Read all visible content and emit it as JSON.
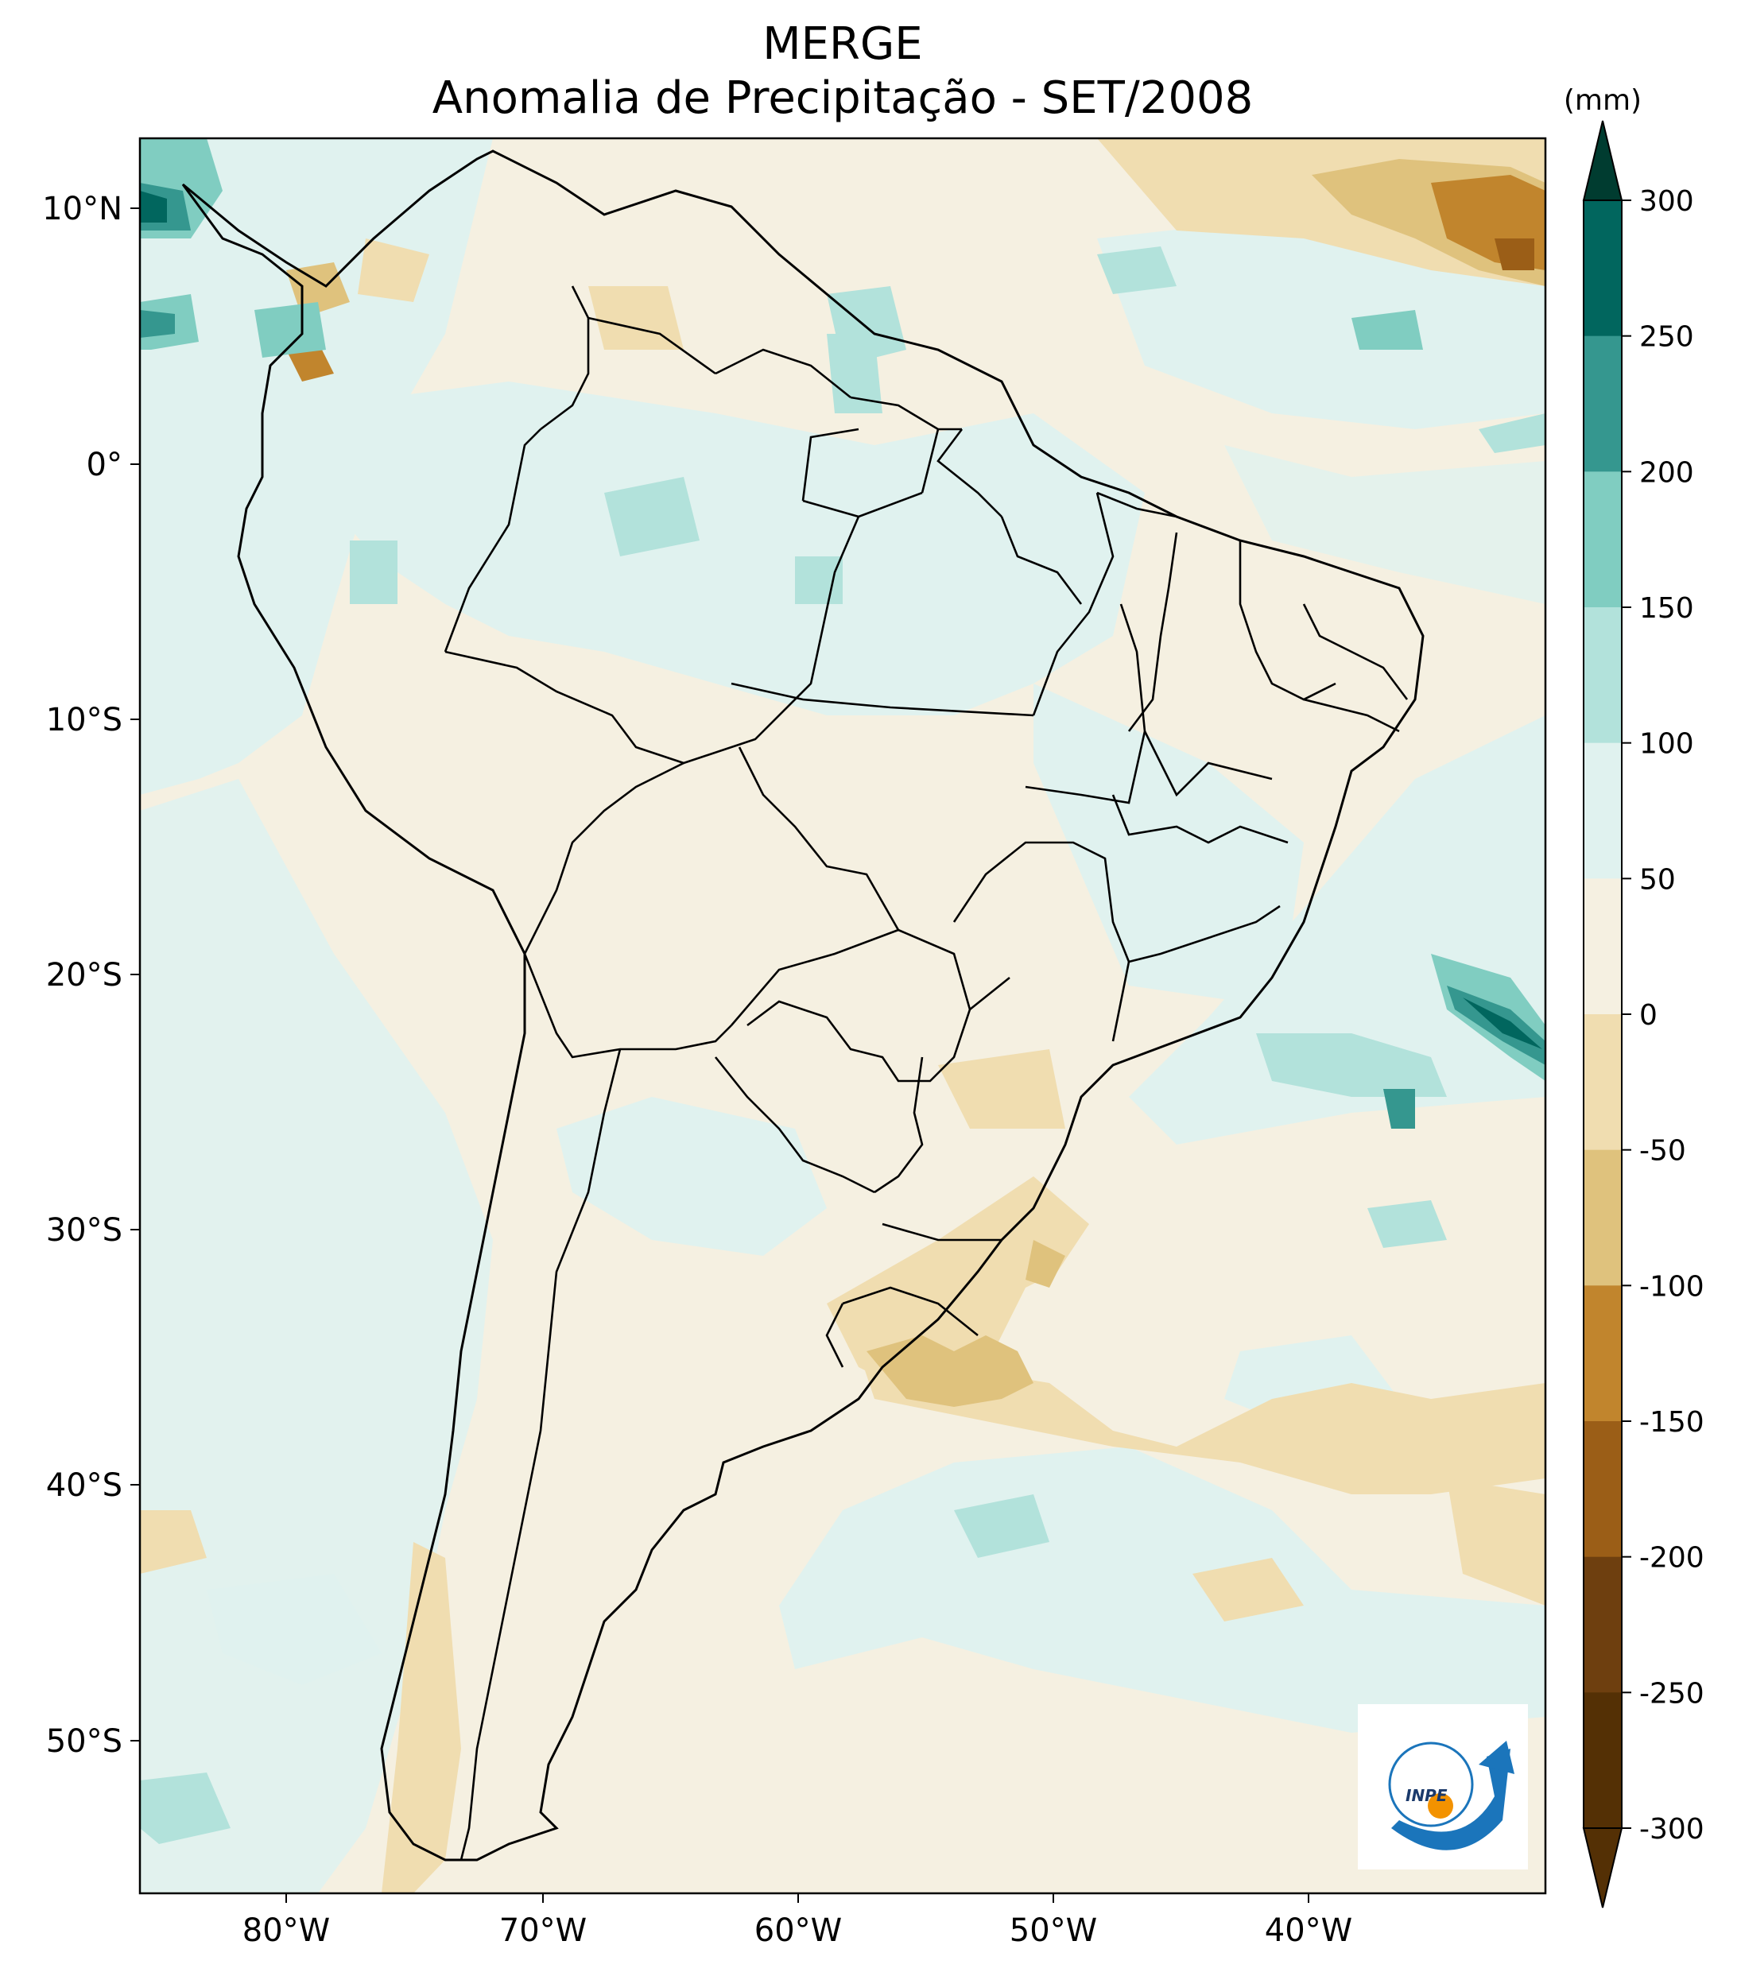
{
  "title": "MERGE",
  "subtitle": "Anomalia de Precipitação - SET/2008",
  "colorbar": {
    "unit": "(mm)",
    "ticks": [
      "300",
      "250",
      "200",
      "150",
      "100",
      "50",
      "0",
      "-50",
      "-100",
      "-150",
      "-200",
      "-250",
      "-300"
    ],
    "colors": [
      "#003c30",
      "#01665e",
      "#35978f",
      "#80cdc1",
      "#b2e2db",
      "#e0f2ef",
      "#f5f0e1",
      "#f0ddb0",
      "#dfc27d",
      "#c1852d",
      "#9b5e17",
      "#6e3f0f",
      "#543005"
    ]
  },
  "axes": {
    "lat_labels": [
      "10°N",
      "0°",
      "10°S",
      "20°S",
      "30°S",
      "40°S",
      "50°S"
    ],
    "lon_labels": [
      "80°W",
      "70°W",
      "60°W",
      "50°W",
      "40°W"
    ]
  },
  "logo": {
    "text": "INPE"
  }
}
